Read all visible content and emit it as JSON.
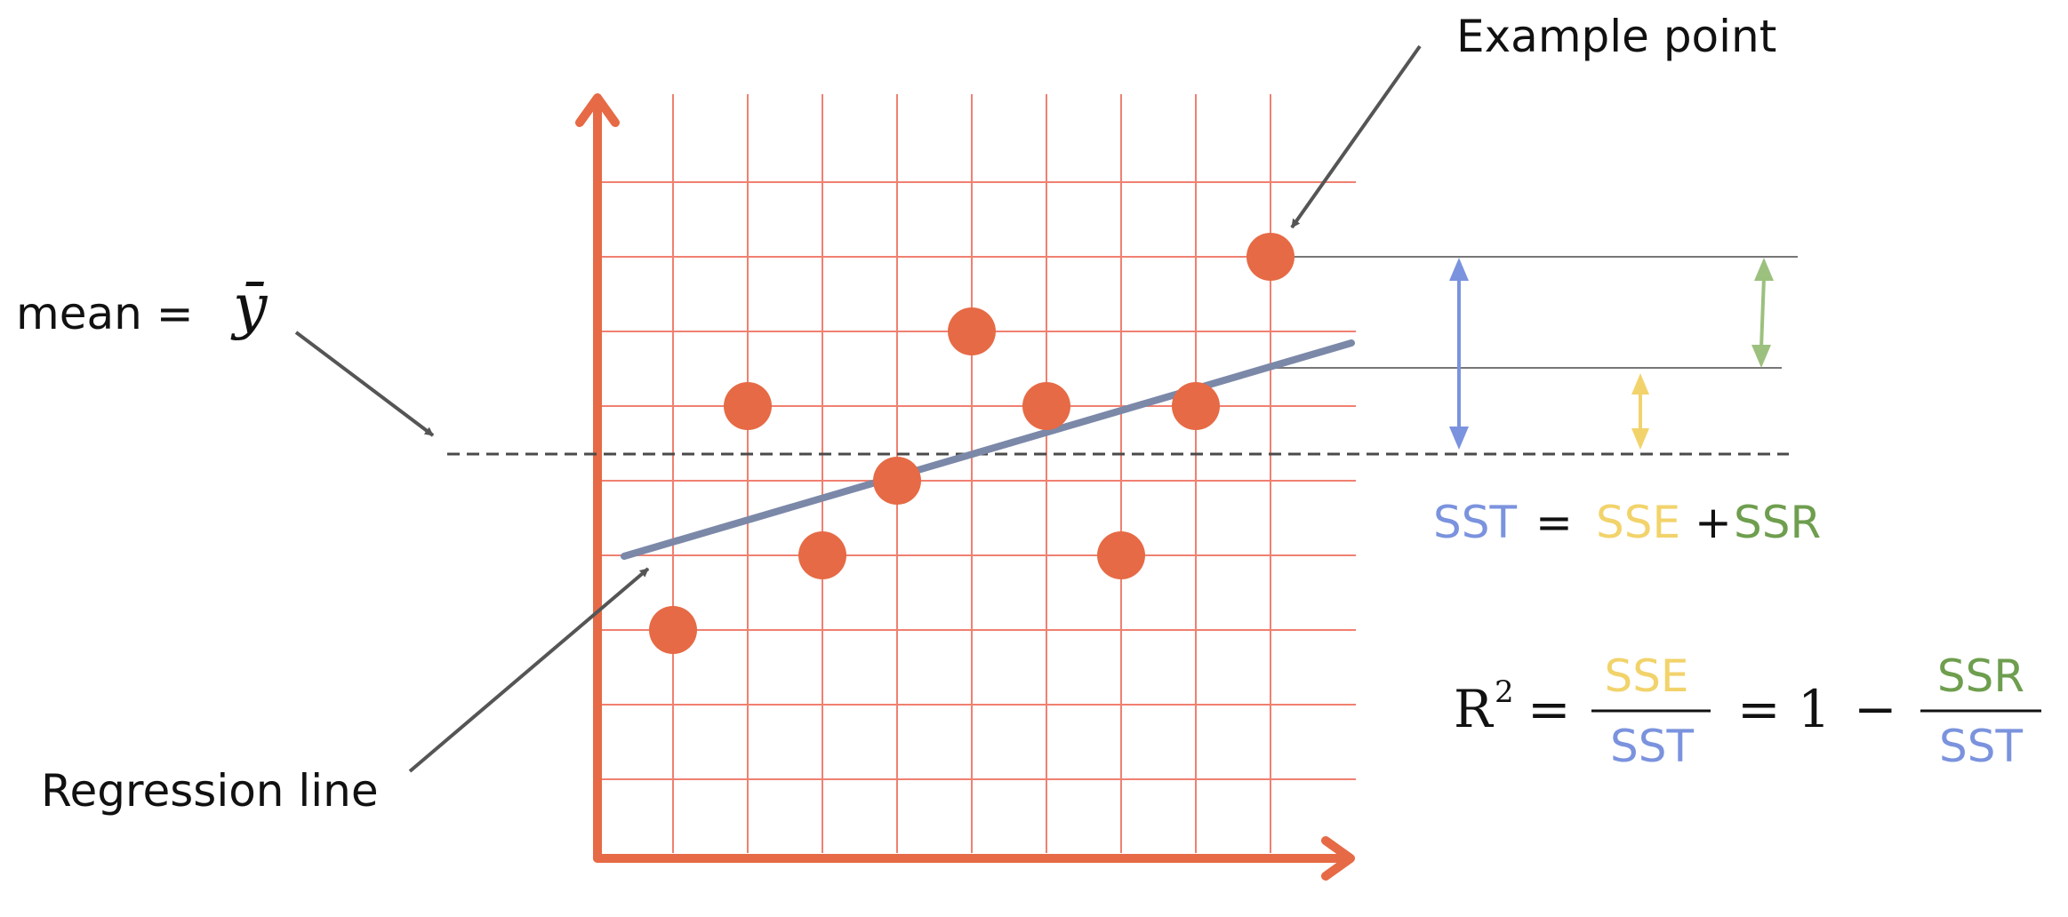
{
  "labels": {
    "example_point": "Example point",
    "mean_prefix": "mean =",
    "mean_symbol": "ȳ",
    "regression_line": "Regression line"
  },
  "equation1": {
    "sst": "SST",
    "equals": "=",
    "sse": "SSE",
    "plus": "+",
    "ssr": "SSR"
  },
  "equation2": {
    "r": "R",
    "power": "2",
    "equals": "=",
    "numerator1": "SSE",
    "denominator1": "SST",
    "equals2": "=",
    "one": "1",
    "minus": "−",
    "numerator2": "SSR",
    "denominator2": "SST"
  },
  "colors": {
    "grid": "#F08070",
    "axis": "#E66A45",
    "point": "#E66A45",
    "regression": "#7B88A8",
    "mean_line": "#4A4A4A",
    "callout_arrow": "#555555",
    "sst": "#7B93DE",
    "sse": "#F2D36B",
    "ssr": "#6E9E4E"
  }
}
